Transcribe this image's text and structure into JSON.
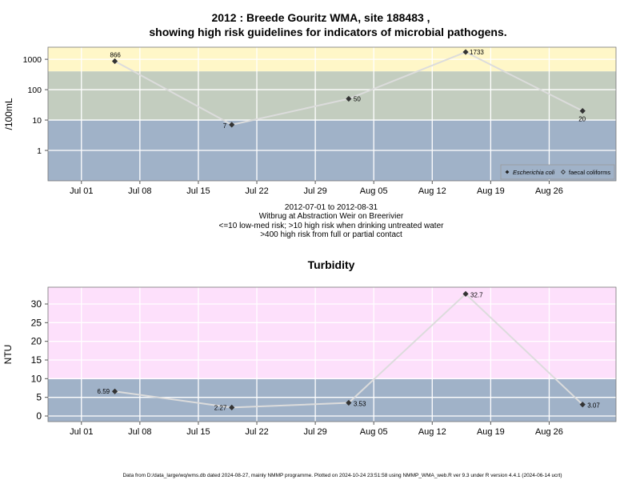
{
  "title_line1": "2012 : Breede Gouritz WMA, site 188483 ,",
  "title_line2": "showing high risk guidelines for indicators of microbial pathogens.",
  "subtitle_lines": [
    "2012-07-01 to 2012-08-31",
    "Witbrug at Abstraction Weir on Breerivier",
    "<=10 low-med risk; >10 high risk when drinking untreated water",
    ">400 high risk from full or partial contact"
  ],
  "footer": "Data from D:/data_large/wq/wms.db dated 2024-08-27, mainly NMMP programme. Plotted on 2024-10-24 23:51:58 using NMMP_WMA_web.R ver 9.3 under R version 4.4.1 (2024-06-14 ucrt)",
  "colors": {
    "band_yellow": "#fff7c8",
    "band_green": "#c3cdbf",
    "band_blue": "#a0b2c8",
    "band_pink": "#fde0fb",
    "line": "#dcdcdc",
    "point": "#333333"
  },
  "chart_data": [
    {
      "type": "line",
      "title": "",
      "xlabel": "",
      "ylabel": "/100mL",
      "y_scale": "log10",
      "ylim": [
        0.1,
        2500
      ],
      "xlim": [
        "2012-06-27",
        "2012-09-03"
      ],
      "x_ticks": [
        "Jul 01",
        "Jul 08",
        "Jul 15",
        "Jul 22",
        "Jul 29",
        "Aug 05",
        "Aug 12",
        "Aug 19",
        "Aug 26"
      ],
      "x_tick_dates": [
        "2012-07-01",
        "2012-07-08",
        "2012-07-15",
        "2012-07-22",
        "2012-07-29",
        "2012-08-05",
        "2012-08-12",
        "2012-08-19",
        "2012-08-26"
      ],
      "y_ticks": [
        "1",
        "10",
        "100",
        "1000"
      ],
      "y_tick_values": [
        1,
        10,
        100,
        1000
      ],
      "risk_bands": [
        {
          "from": 400,
          "to": 2500,
          "color": "band_yellow"
        },
        {
          "from": 10,
          "to": 400,
          "color": "band_green"
        },
        {
          "from": 0.1,
          "to": 10,
          "color": "band_blue"
        }
      ],
      "grid": true,
      "legend_position": "bottom-right",
      "legend": [
        {
          "marker": "filled-diamond",
          "label": "Escherichia coli"
        },
        {
          "marker": "open-diamond",
          "label": "faecal coliforms"
        }
      ],
      "series": [
        {
          "name": "Escherichia coli",
          "x": [
            "2012-07-05",
            "2012-07-19",
            "2012-08-02",
            "2012-08-16",
            "2012-08-30"
          ],
          "values": [
            866,
            7,
            50,
            1733,
            20
          ],
          "labels": [
            "866",
            "7",
            "50",
            "1733",
            "20"
          ]
        }
      ]
    },
    {
      "type": "line",
      "title": "Turbidity",
      "xlabel": "",
      "ylabel": "NTU",
      "ylim": [
        -1.5,
        34.5
      ],
      "xlim": [
        "2012-06-27",
        "2012-09-03"
      ],
      "x_ticks": [
        "Jul 01",
        "Jul 08",
        "Jul 15",
        "Jul 22",
        "Jul 29",
        "Aug 05",
        "Aug 12",
        "Aug 19",
        "Aug 26"
      ],
      "x_tick_dates": [
        "2012-07-01",
        "2012-07-08",
        "2012-07-15",
        "2012-07-22",
        "2012-07-29",
        "2012-08-05",
        "2012-08-12",
        "2012-08-19",
        "2012-08-26"
      ],
      "y_ticks": [
        "0",
        "5",
        "10",
        "15",
        "20",
        "25",
        "30"
      ],
      "y_tick_values": [
        0,
        5,
        10,
        15,
        20,
        25,
        30
      ],
      "risk_bands": [
        {
          "from": 10,
          "to": 34.5,
          "color": "band_pink"
        },
        {
          "from": -1.5,
          "to": 10,
          "color": "band_blue"
        }
      ],
      "grid": true,
      "series": [
        {
          "x": [
            "2012-07-05",
            "2012-07-19",
            "2012-08-02",
            "2012-08-16",
            "2012-08-30"
          ],
          "values": [
            6.59,
            2.27,
            3.53,
            32.7,
            3.07
          ],
          "labels": [
            "6.59",
            "2.27",
            "3.53",
            "32.7",
            "3.07"
          ]
        }
      ]
    }
  ]
}
